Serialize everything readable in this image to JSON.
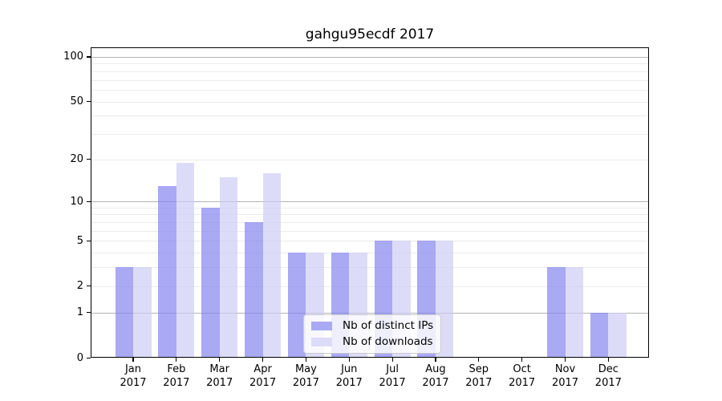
{
  "chart_data": {
    "type": "bar",
    "title": "gahgu95ecdf 2017",
    "categories": [
      "Jan",
      "Feb",
      "Mar",
      "Apr",
      "May",
      "Jun",
      "Jul",
      "Aug",
      "Sep",
      "Oct",
      "Nov",
      "Dec"
    ],
    "year": "2017",
    "series": [
      {
        "name": "Nb of distinct IPs",
        "values": [
          3,
          13,
          9,
          7,
          4,
          4,
          5,
          5,
          0,
          0,
          3,
          1
        ]
      },
      {
        "name": "Nb of downloads",
        "values": [
          3,
          19,
          15,
          16,
          4,
          4,
          5,
          5,
          0,
          0,
          3,
          1
        ]
      }
    ],
    "yscale": "log1p",
    "yticks": [
      0,
      1,
      2,
      5,
      10,
      20,
      50,
      100
    ],
    "grid_minor": [
      2,
      3,
      4,
      5,
      6,
      7,
      8,
      9,
      20,
      30,
      40,
      50,
      60,
      70,
      80,
      90
    ],
    "grid_major": [
      1,
      10,
      100
    ],
    "legend_position": "lower center",
    "colors": {
      "ips_bar": "rgba(132,132,239,0.7)",
      "downloads_bar": "rgba(205,205,245,0.7)",
      "ips_swatch": "#a9a9f4",
      "downloads_swatch": "#dcdcf8",
      "grid_major": "#b3b3b3",
      "grid_minor": "#ebebeb",
      "axis": "#000000"
    }
  }
}
